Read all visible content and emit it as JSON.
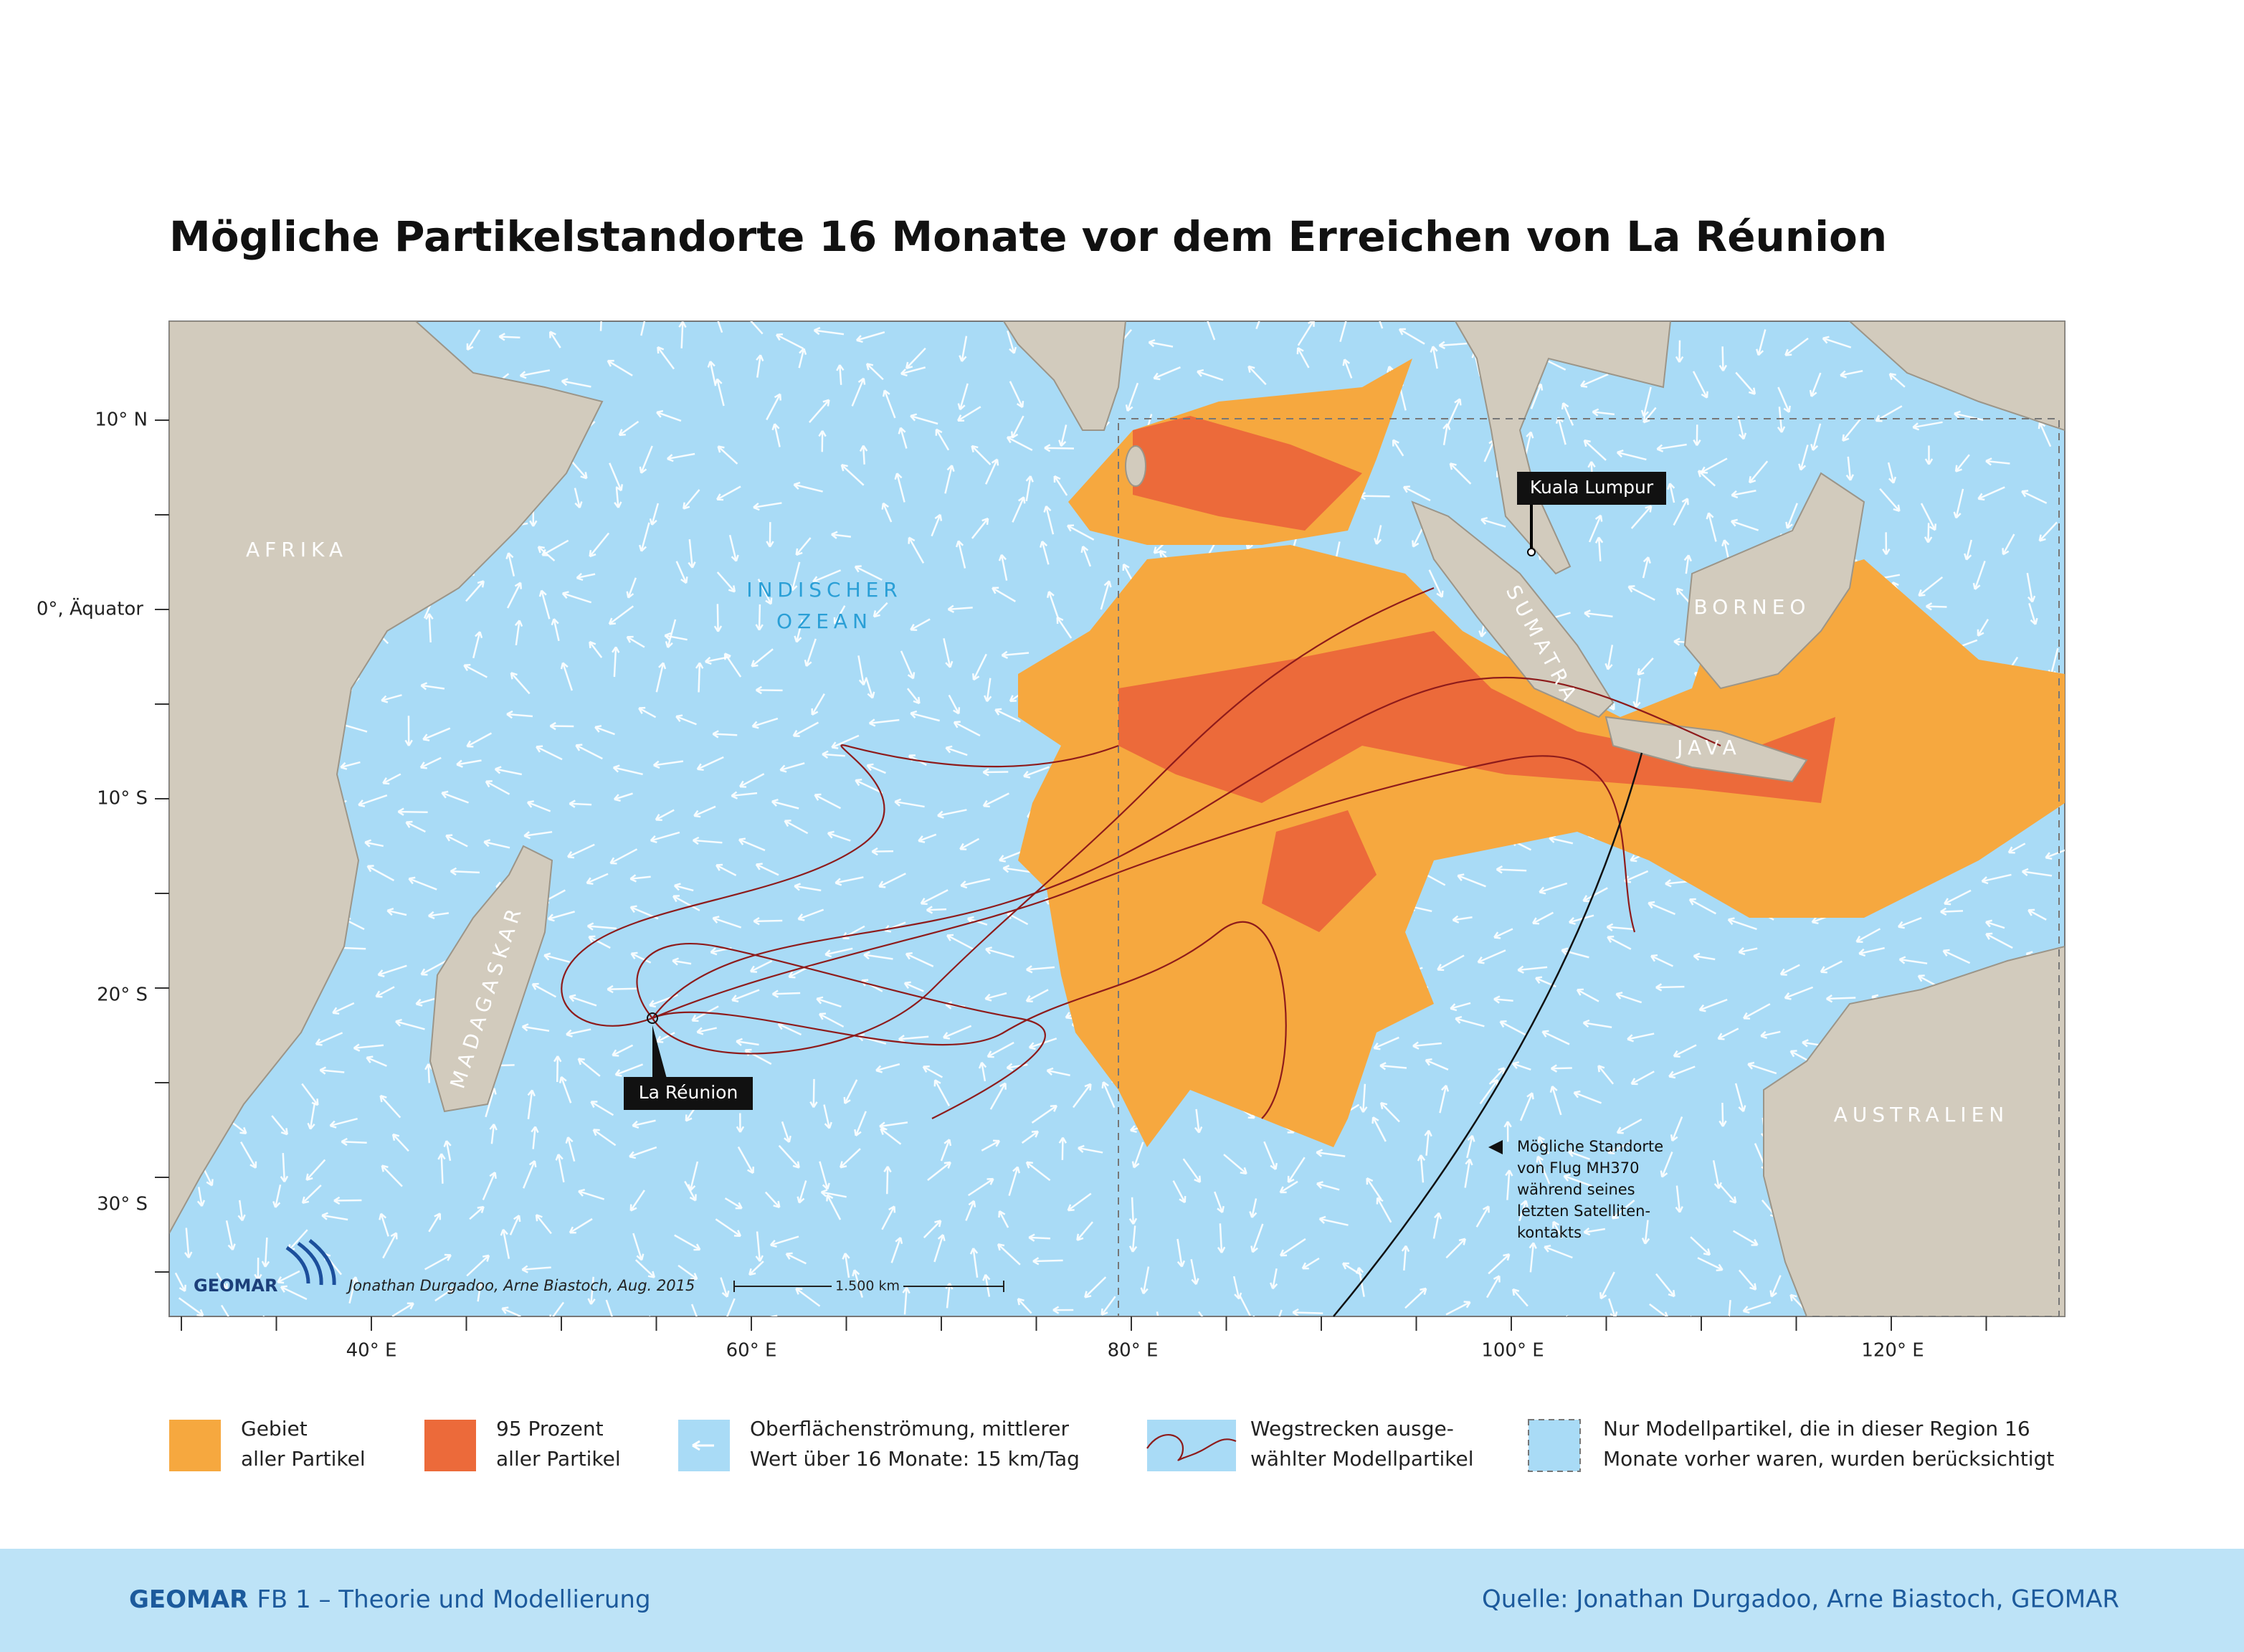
{
  "title": "Mögliche Partikelstandorte 16 Monate vor dem Erreichen von La Réunion",
  "map": {
    "regions": {
      "africa": "AFRIKA",
      "madagascar": "MADAGASKAR",
      "sumatra": "SUMATRA",
      "borneo": "BORNEO",
      "java": "JAVA",
      "australia": "AUSTRALIEN"
    },
    "ocean_label": [
      "INDISCHER",
      "OZEAN"
    ],
    "callouts": {
      "kuala_lumpur": "Kuala Lumpur",
      "la_reunion": "La Réunion"
    },
    "mh370_note": [
      "Mögliche Standorte",
      "von Flug MH370",
      "während seines",
      "letzten Satelliten-",
      "kontakts"
    ],
    "latitude_labels": [
      "10° N",
      "0°, Äquator",
      "10° S",
      "20° S",
      "30° S"
    ],
    "longitude_labels": [
      "40° E",
      "60° E",
      "80° E",
      "100° E",
      "120° E"
    ],
    "logo": "GEOMAR",
    "credit": "Jonathan Durgadoo, Arne Biastoch, Aug. 2015",
    "scale": "1.500 km"
  },
  "legend": [
    {
      "lines": [
        "Gebiet",
        "aller Partikel"
      ]
    },
    {
      "lines": [
        "95 Prozent",
        "aller Partikel"
      ]
    },
    {
      "lines": [
        "Oberflächenströmung, mittlerer",
        "Wert über 16 Monate: 15 km/Tag"
      ]
    },
    {
      "lines": [
        "Wegstrecken ausge-",
        "wählter Modellpartikel"
      ]
    },
    {
      "lines": [
        "Nur Modellpartikel, die in dieser Region 16",
        "Monate vorher waren, wurden berücksichtigt"
      ]
    }
  ],
  "footer": {
    "org": "GEOMAR",
    "department": "FB 1 – Theorie und Modellierung",
    "source": "Quelle: Jonathan Durgadoo, Arne Biastoch, GEOMAR"
  }
}
